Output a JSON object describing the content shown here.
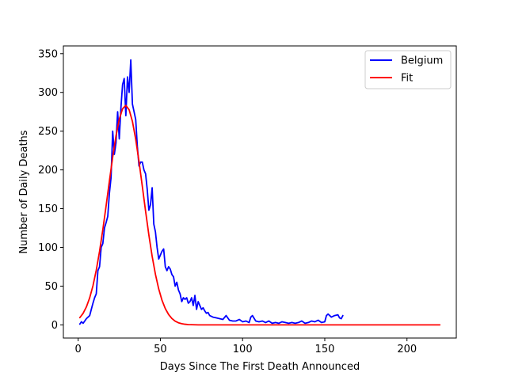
{
  "chart_data": {
    "type": "line",
    "xlabel": "Days Since The First Death Announced",
    "ylabel": "Number of Daily Deaths",
    "xlim": [
      -9,
      230
    ],
    "ylim": [
      -17,
      360
    ],
    "x_ticks": [
      0,
      50,
      100,
      150,
      200
    ],
    "y_ticks": [
      0,
      50,
      100,
      150,
      200,
      250,
      300,
      350
    ],
    "grid": false,
    "legend_position": "top-right",
    "series": [
      {
        "name": "Belgium",
        "color": "#0000ff",
        "x": [
          1,
          2,
          3,
          4,
          5,
          6,
          7,
          8,
          9,
          10,
          11,
          12,
          13,
          14,
          15,
          16,
          17,
          18,
          19,
          20,
          21,
          22,
          23,
          24,
          25,
          26,
          27,
          28,
          29,
          30,
          31,
          32,
          33,
          34,
          35,
          36,
          37,
          38,
          39,
          40,
          41,
          42,
          43,
          44,
          45,
          46,
          47,
          48,
          49,
          50,
          51,
          52,
          53,
          54,
          55,
          56,
          57,
          58,
          59,
          60,
          61,
          62,
          63,
          64,
          65,
          66,
          67,
          68,
          69,
          70,
          71,
          72,
          73,
          74,
          75,
          76,
          77,
          78,
          79,
          80,
          82,
          84,
          86,
          88,
          90,
          92,
          94,
          96,
          98,
          100,
          102,
          104,
          105,
          106,
          108,
          110,
          112,
          114,
          116,
          118,
          120,
          122,
          124,
          126,
          128,
          130,
          132,
          134,
          136,
          138,
          140,
          142,
          144,
          146,
          148,
          150,
          151,
          152,
          154,
          156,
          158,
          159,
          160,
          161
        ],
        "y": [
          1,
          4,
          2,
          5,
          8,
          10,
          12,
          20,
          28,
          35,
          40,
          70,
          75,
          100,
          105,
          125,
          132,
          140,
          170,
          190,
          250,
          220,
          235,
          275,
          240,
          280,
          310,
          318,
          270,
          320,
          300,
          342,
          285,
          275,
          265,
          230,
          205,
          210,
          210,
          200,
          195,
          175,
          148,
          155,
          177,
          130,
          120,
          100,
          85,
          90,
          95,
          98,
          75,
          70,
          75,
          72,
          65,
          62,
          50,
          55,
          45,
          40,
          30,
          35,
          33,
          35,
          28,
          30,
          35,
          25,
          38,
          20,
          30,
          25,
          20,
          22,
          18,
          15,
          16,
          12,
          10,
          9,
          8,
          7,
          12,
          6,
          5,
          5,
          7,
          4,
          5,
          3,
          10,
          12,
          5,
          4,
          5,
          3,
          5,
          2,
          3,
          2,
          4,
          3,
          2,
          3,
          2,
          3,
          5,
          2,
          3,
          5,
          4,
          6,
          3,
          4,
          12,
          14,
          10,
          12,
          13,
          9,
          8,
          12
        ]
      },
      {
        "name": "Fit",
        "color": "#ff0000",
        "x": [
          1,
          3,
          5,
          7,
          9,
          11,
          13,
          15,
          17,
          19,
          21,
          23,
          25,
          27,
          29,
          31,
          33,
          35,
          37,
          39,
          41,
          43,
          45,
          47,
          49,
          51,
          53,
          55,
          57,
          59,
          61,
          63,
          65,
          67,
          69,
          71,
          73,
          75,
          77,
          79,
          81,
          85,
          90,
          100,
          120,
          140,
          160,
          180,
          200,
          220
        ],
        "y": [
          9.3,
          14.9,
          23.2,
          34.9,
          50.5,
          70.6,
          94.9,
          123.0,
          153.8,
          185.7,
          216.5,
          243.8,
          265.3,
          278.9,
          283.2,
          277.6,
          262.6,
          239.6,
          210.9,
          179.0,
          146.7,
          116.0,
          88.5,
          65.2,
          46.3,
          31.7,
          21.0,
          13.4,
          8.2,
          4.8,
          2.7,
          1.5,
          0.8,
          0.4,
          0.2,
          0.1,
          0,
          0,
          0,
          0,
          0,
          0,
          0,
          0,
          0,
          0,
          0,
          0,
          0,
          0
        ]
      }
    ]
  }
}
